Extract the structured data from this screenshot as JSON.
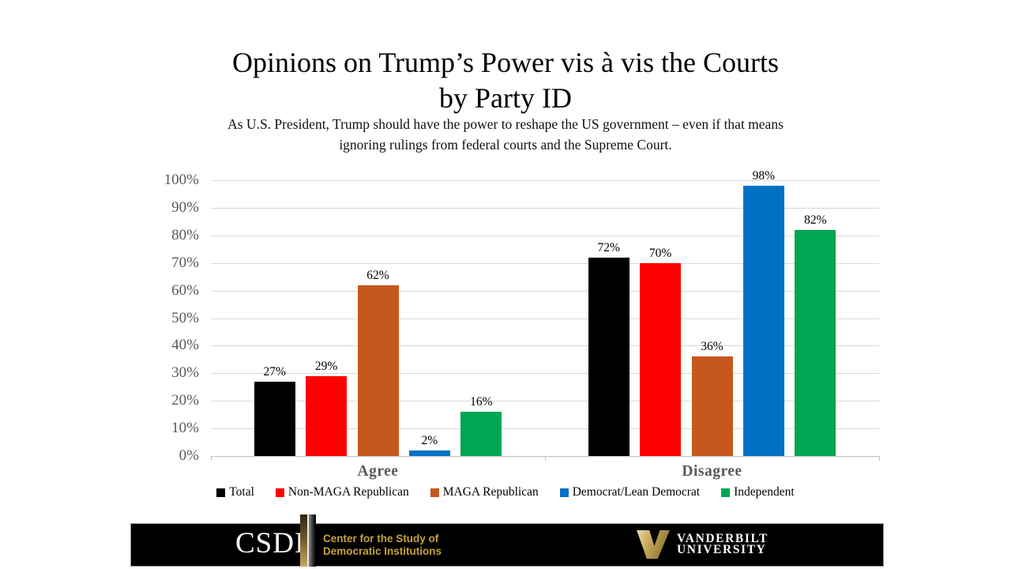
{
  "slide": {
    "title_line1": "Opinions on Trump’s Power vis à vis the Courts",
    "title_line2": "by Party ID",
    "subtitle_line1": "As U.S. President, Trump should have the power to reshape the US government – even if that means",
    "subtitle_line2": "ignoring rulings from federal courts and the Supreme Court."
  },
  "chart_data": {
    "type": "bar",
    "title": "Opinions on Trump’s Power vis à vis the Courts by Party ID",
    "subtitle": "As U.S. President, Trump should have the power to reshape the US government – even if that means ignoring rulings from federal courts and the Supreme Court.",
    "categories": [
      "Agree",
      "Disagree"
    ],
    "series": [
      {
        "name": "Total",
        "color": "#000000",
        "values": [
          27,
          72
        ]
      },
      {
        "name": "Non-MAGA Republican",
        "color": "#ff0000",
        "values": [
          29,
          70
        ]
      },
      {
        "name": "MAGA Republican",
        "color": "#c5581c",
        "values": [
          62,
          36
        ]
      },
      {
        "name": "Democrat/Lean Democrat",
        "color": "#0072c6",
        "values": [
          2,
          98
        ]
      },
      {
        "name": "Independent",
        "color": "#00a651",
        "values": [
          16,
          82
        ]
      }
    ],
    "data_labels": [
      [
        "27%",
        "29%",
        "62%",
        "2%",
        "16%"
      ],
      [
        "72%",
        "70%",
        "36%",
        "98%",
        "82%"
      ]
    ],
    "xlabel": "",
    "ylabel": "",
    "ylim": [
      0,
      100
    ],
    "ytick_step": 10,
    "ytick_suffix": "%",
    "grid": true,
    "legend_position": "bottom",
    "axis_text_color": "#595959",
    "gridline_color": "#d9d9d9"
  },
  "footer": {
    "csdi_acronym": "CSDI",
    "csdi_name_line1": "Center for the Study of",
    "csdi_name_line2": "Democratic Institutions",
    "vanderbilt_line1": "VANDERBILT",
    "vanderbilt_line2": "UNIVERSITY",
    "gold_color": "#c6a23e"
  }
}
